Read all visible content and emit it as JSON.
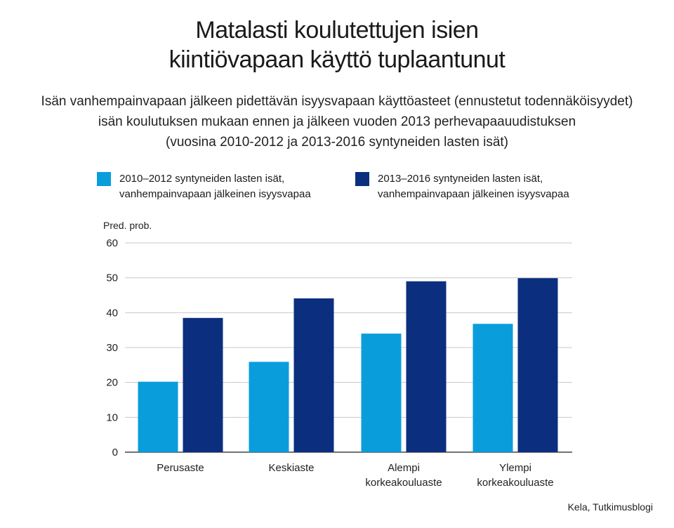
{
  "title_lines": [
    "Matalasti koulutettujen isien",
    "kiintiövapaan käyttö tuplaantunut"
  ],
  "subtitle_lines": [
    "Isän vanhempainvapaan jälkeen pidettävän isyysvapaan käyttöasteet (ennustetut todennäköisyydet)",
    "isän koulutuksen mukaan ennen ja jälkeen vuoden 2013 perhevapaauudistuksen",
    "(vuosina 2010-2012 ja 2013-2016 syntyneiden lasten isät)"
  ],
  "legend": [
    {
      "line1": "2010–2012 syntyneiden lasten isät,",
      "line2": "vanhempainvapaan jälkeinen isyysvapaa",
      "color": "#0a9ddc"
    },
    {
      "line1": "2013–2016 syntyneiden lasten isät,",
      "line2": "vanhempainvapaan jälkeinen isyysvapaa",
      "color": "#0b2f7e"
    }
  ],
  "source": "Kela, Tutkimusblogi",
  "chart_data": {
    "type": "bar",
    "ylabel": "Pred. prob.",
    "ylim": [
      0,
      60
    ],
    "yticks": [
      0,
      10,
      20,
      30,
      40,
      50,
      60
    ],
    "grid": true,
    "categories": [
      [
        "Perusaste"
      ],
      [
        "Keskiaste"
      ],
      [
        "Alempi",
        "korkeakouluaste"
      ],
      [
        "Ylempi",
        "korkeakouluaste"
      ]
    ],
    "series": [
      {
        "name": "2010–2012 syntyneiden lasten isät, vanhempainvapaan jälkeinen isyysvapaa",
        "color": "#0a9ddc",
        "values": [
          20.2,
          25.9,
          34.0,
          36.8
        ]
      },
      {
        "name": "2013–2016 syntyneiden lasten isät, vanhempainvapaan jälkeinen isyysvapaa",
        "color": "#0b2f7e",
        "values": [
          38.5,
          44.1,
          49.0,
          49.9
        ]
      }
    ]
  }
}
